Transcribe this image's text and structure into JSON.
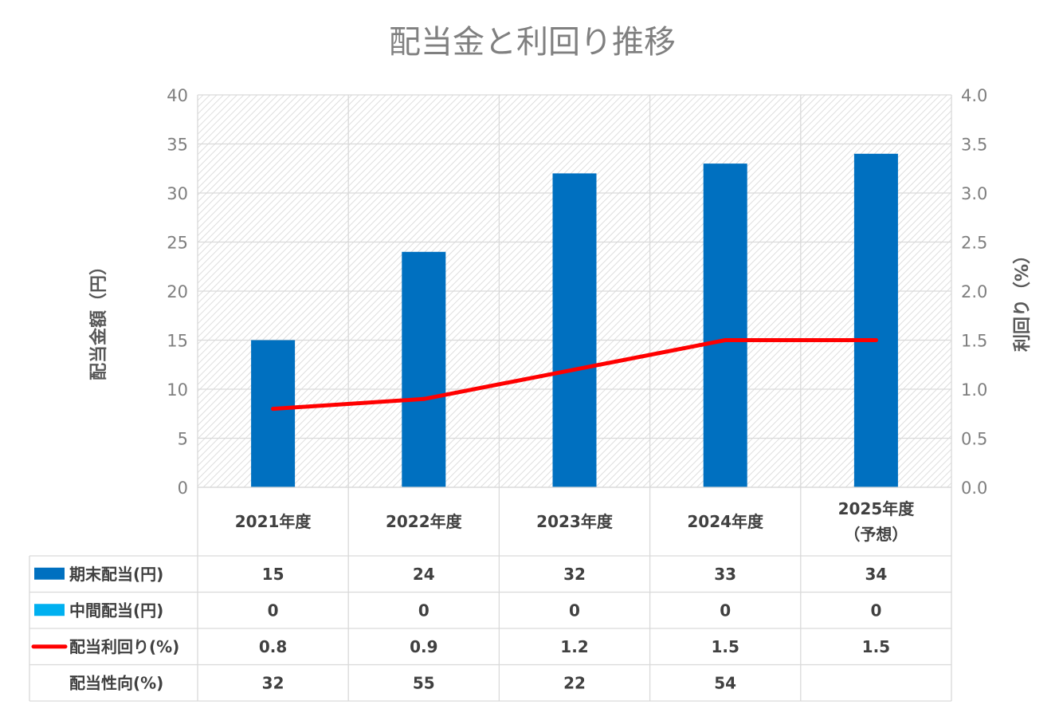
{
  "chart_data": {
    "type": "bar",
    "title": "配当金と利回り推移",
    "ylabel": "配当金額（円）",
    "y2label": "利回り（%）",
    "ylim": [
      0,
      40
    ],
    "y2lim": [
      0,
      4.0
    ],
    "yticks": [
      "0",
      "5",
      "10",
      "15",
      "20",
      "25",
      "30",
      "35",
      "40"
    ],
    "y2ticks": [
      "0.0",
      "0.5",
      "1.0",
      "1.5",
      "2.0",
      "2.5",
      "3.0",
      "3.5",
      "4.0"
    ],
    "categories": [
      [
        "2021年度"
      ],
      [
        "2022年度"
      ],
      [
        "2023年度"
      ],
      [
        "2024年度"
      ],
      [
        "2025年度",
        "（予想）"
      ]
    ],
    "series": [
      {
        "name": "期末配当(円)",
        "type": "bar",
        "axis": "left",
        "color": "#0070c0",
        "values": [
          15,
          24,
          32,
          33,
          34
        ]
      },
      {
        "name": "中間配当(円)",
        "type": "bar",
        "axis": "left",
        "color": "#00b0f0",
        "values": [
          0,
          0,
          0,
          0,
          0
        ]
      },
      {
        "name": "配当利回り(%)",
        "type": "line",
        "axis": "right",
        "color": "#ff0000",
        "values": [
          0.8,
          0.9,
          1.2,
          1.5,
          1.5
        ]
      }
    ],
    "table_rows": [
      {
        "label": "期末配当(円)",
        "legend": "bar",
        "color": "#0070c0",
        "cells": [
          "15",
          "24",
          "32",
          "33",
          "34"
        ]
      },
      {
        "label": "中間配当(円)",
        "legend": "bar",
        "color": "#00b0f0",
        "cells": [
          "0",
          "0",
          "0",
          "0",
          "0"
        ]
      },
      {
        "label": "配当利回り(%)",
        "legend": "line",
        "color": "#ff0000",
        "cells": [
          "0.8",
          "0.9",
          "1.2",
          "1.5",
          "1.5"
        ]
      },
      {
        "label": "配当性向(%)",
        "legend": "none",
        "color": "",
        "cells": [
          "32",
          "55",
          "22",
          "54",
          ""
        ]
      }
    ],
    "grid": true,
    "legend": "data-table"
  }
}
